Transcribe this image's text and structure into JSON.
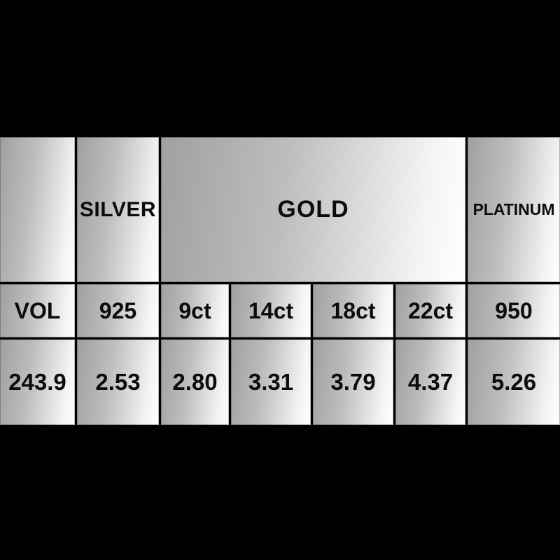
{
  "chart_data": {
    "type": "table",
    "group_headers": [
      {
        "label": "",
        "span": 1
      },
      {
        "label": "SILVER",
        "span": 1
      },
      {
        "label": "GOLD",
        "span": 4
      },
      {
        "label": "PLATINUM",
        "span": 1
      }
    ],
    "sub_headers": [
      "VOL",
      "925",
      "9ct",
      "14ct",
      "18ct",
      "22ct",
      "950"
    ],
    "rows": [
      [
        "243.9",
        "2.53",
        "2.80",
        "3.31",
        "3.79",
        "4.37",
        "5.26"
      ]
    ],
    "layout_hints": {
      "grid": "on",
      "merged_gold_columns": 4
    }
  },
  "colors": {
    "page_background": "#000000",
    "cell_gradient_dark": "#a0a0a0",
    "cell_gradient_light": "#ffffff",
    "text": "#0c0c0c",
    "grid_line": "#000000"
  }
}
